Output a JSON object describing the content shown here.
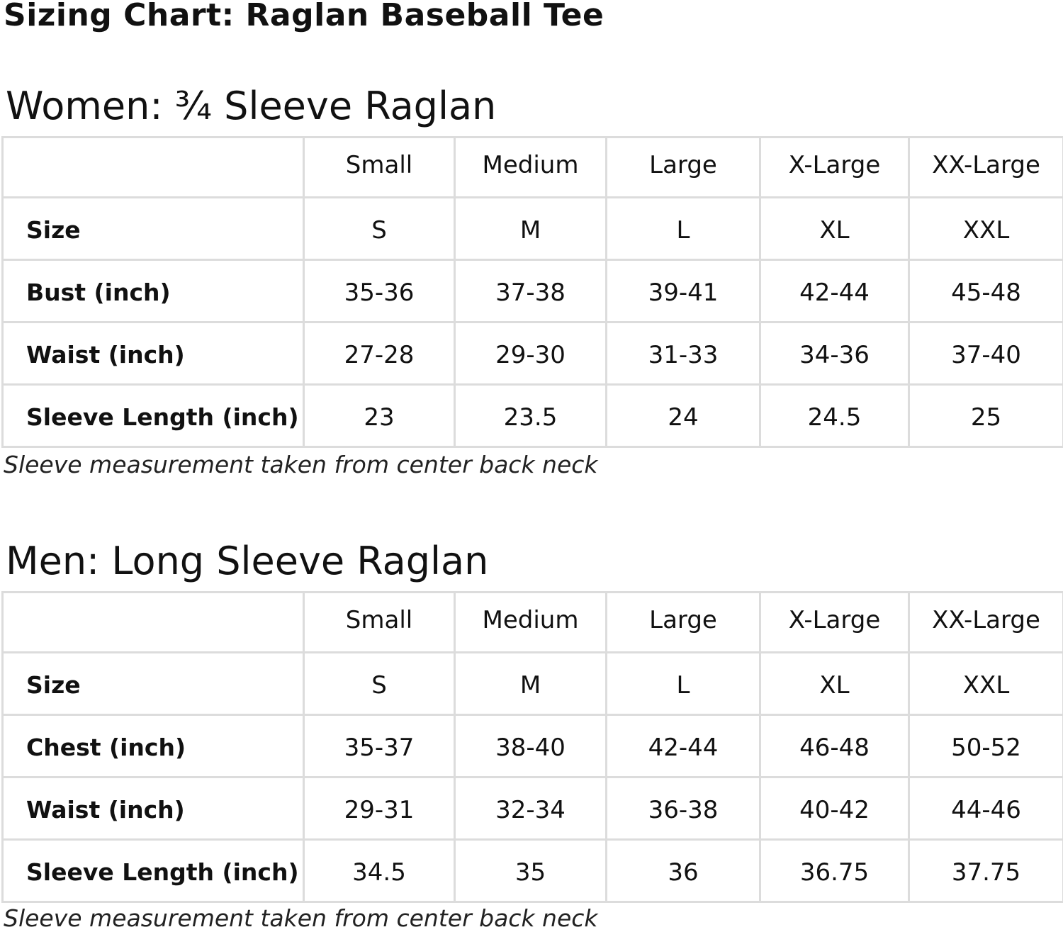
{
  "title": "Sizing Chart: Raglan Baseball Tee",
  "sections": [
    {
      "heading": "Women: ¾ Sleeve Raglan",
      "columns": [
        "Small",
        "Medium",
        "Large",
        "X-Large",
        "XX-Large"
      ],
      "rows": [
        {
          "label": "Size",
          "cells": [
            "S",
            "M",
            "L",
            "XL",
            "XXL"
          ]
        },
        {
          "label": "Bust (inch)",
          "cells": [
            "35-36",
            "37-38",
            "39-41",
            "42-44",
            "45-48"
          ]
        },
        {
          "label": "Waist (inch)",
          "cells": [
            "27-28",
            "29-30",
            "31-33",
            "34-36",
            "37-40"
          ]
        },
        {
          "label": "Sleeve Length (inch)",
          "cells": [
            "23",
            "23.5",
            "24",
            "24.5",
            "25"
          ]
        }
      ],
      "note": "Sleeve measurement taken from center back neck"
    },
    {
      "heading": "Men: Long Sleeve Raglan",
      "columns": [
        "Small",
        "Medium",
        "Large",
        "X-Large",
        "XX-Large"
      ],
      "rows": [
        {
          "label": "Size",
          "cells": [
            "S",
            "M",
            "L",
            "XL",
            "XXL"
          ]
        },
        {
          "label": "Chest (inch)",
          "cells": [
            "35-37",
            "38-40",
            "42-44",
            "46-48",
            "50-52"
          ]
        },
        {
          "label": "Waist (inch)",
          "cells": [
            "29-31",
            "32-34",
            "36-38",
            "40-42",
            "44-46"
          ]
        },
        {
          "label": "Sleeve Length (inch)",
          "cells": [
            "34.5",
            "35",
            "36",
            "36.75",
            "37.75"
          ]
        }
      ],
      "note": "Sleeve measurement taken from center back neck"
    }
  ]
}
